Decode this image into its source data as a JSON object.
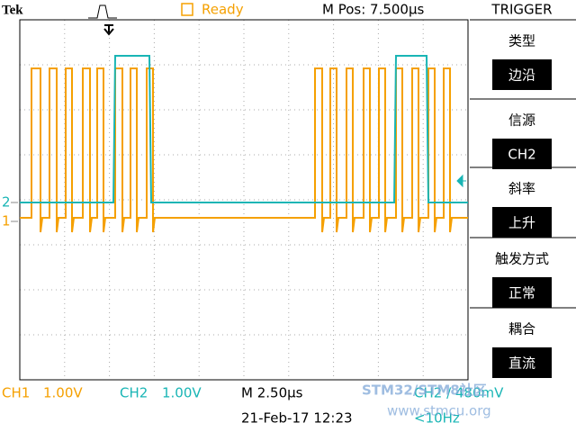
{
  "header": {
    "brand": "Tek",
    "status": "Ready",
    "position": "M Pos: 7.500µs"
  },
  "markers": {
    "ch1": "1",
    "ch2": "2"
  },
  "menu": {
    "title": "TRIGGER",
    "items": [
      {
        "label": "类型",
        "value": "边沿"
      },
      {
        "label": "信源",
        "value": "CH2"
      },
      {
        "label": "斜率",
        "value": "上升"
      },
      {
        "label": "触发方式",
        "value": "正常"
      },
      {
        "label": "耦合",
        "value": "直流"
      }
    ]
  },
  "footer": {
    "ch1": "CH1",
    "ch1_scale": "1.00V",
    "ch2": "CH2",
    "ch2_scale": "1.00V",
    "timebase": "M 2.50µs",
    "trigger": "CH2 / 480mV",
    "date": "21-Feb-17 12:23",
    "frequency": "<10Hz"
  },
  "watermark": {
    "title": "STM32/STM8社区",
    "url": "www.stmcu.org"
  }
}
